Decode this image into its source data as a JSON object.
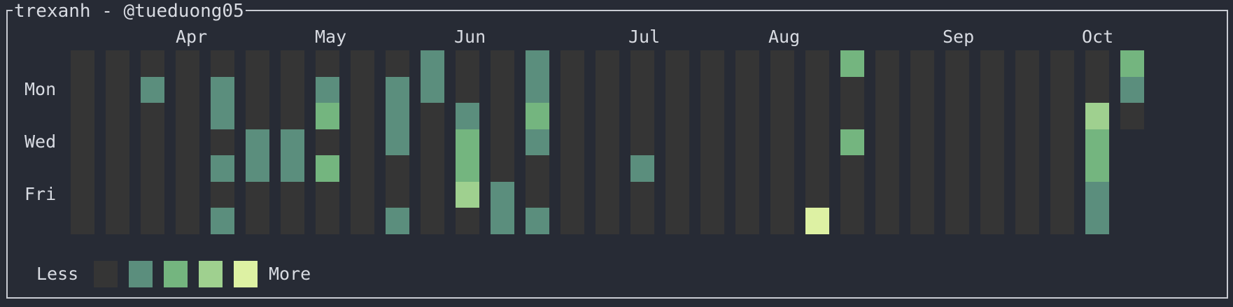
{
  "header": {
    "title": "trexanh - @tueduong05"
  },
  "months": [
    "Apr",
    "May",
    "Jun",
    "Jul",
    "Aug",
    "Sep",
    "Oct"
  ],
  "day_labels": [
    "Mon",
    "Wed",
    "Fri"
  ],
  "legend": {
    "less": "Less",
    "more": "More"
  },
  "colors": {
    "background": "#272b35",
    "empty": "#353535",
    "level1": "#5b8e7d",
    "level2": "#74b57f",
    "level3": "#9fd08f",
    "level4": "#ddf1a3"
  },
  "contributions": [
    [
      0,
      0,
      0,
      0,
      0,
      0,
      0
    ],
    [
      0,
      0,
      0,
      0,
      0,
      0,
      0
    ],
    [
      0,
      1,
      0,
      0,
      0,
      0,
      0
    ],
    [
      0,
      0,
      0,
      0,
      0,
      0,
      0
    ],
    [
      0,
      1,
      1,
      0,
      1,
      0,
      1
    ],
    [
      0,
      0,
      0,
      1,
      1,
      0,
      0
    ],
    [
      0,
      0,
      0,
      1,
      1,
      0,
      0
    ],
    [
      0,
      1,
      2,
      0,
      2,
      0,
      0
    ],
    [
      0,
      0,
      0,
      0,
      0,
      0,
      0
    ],
    [
      0,
      1,
      1,
      1,
      0,
      0,
      1
    ],
    [
      1,
      1,
      0,
      0,
      0,
      0,
      0
    ],
    [
      0,
      0,
      1,
      2,
      2,
      3,
      0
    ],
    [
      0,
      0,
      0,
      0,
      0,
      1,
      1
    ],
    [
      1,
      1,
      2,
      1,
      0,
      0,
      1
    ],
    [
      0,
      0,
      0,
      0,
      0,
      0,
      0
    ],
    [
      0,
      0,
      0,
      0,
      0,
      0,
      0
    ],
    [
      0,
      0,
      0,
      0,
      1,
      0,
      0
    ],
    [
      0,
      0,
      0,
      0,
      0,
      0,
      0
    ],
    [
      0,
      0,
      0,
      0,
      0,
      0,
      0
    ],
    [
      0,
      0,
      0,
      0,
      0,
      0,
      0
    ],
    [
      0,
      0,
      0,
      0,
      0,
      0,
      0
    ],
    [
      0,
      0,
      0,
      0,
      0,
      0,
      4
    ],
    [
      2,
      0,
      0,
      2,
      0,
      0,
      0
    ],
    [
      0,
      0,
      0,
      0,
      0,
      0,
      0
    ],
    [
      0,
      0,
      0,
      0,
      0,
      0,
      0
    ],
    [
      0,
      0,
      0,
      0,
      0,
      0,
      0
    ],
    [
      0,
      0,
      0,
      0,
      0,
      0,
      0
    ],
    [
      0,
      0,
      0,
      0,
      0,
      0,
      0
    ],
    [
      0,
      0,
      0,
      0,
      0,
      0,
      0
    ],
    [
      0,
      0,
      3,
      2,
      2,
      1,
      1
    ],
    [
      2,
      1,
      0
    ]
  ]
}
